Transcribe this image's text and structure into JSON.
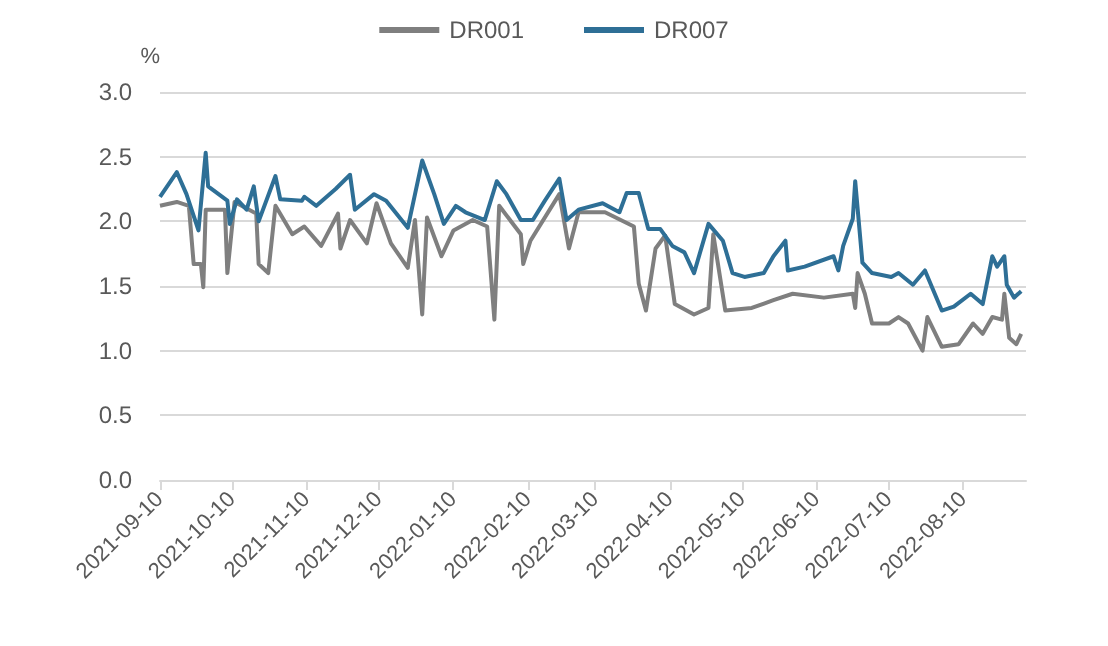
{
  "chart_data": {
    "type": "line",
    "ylabel": "%",
    "legend": "top",
    "grid": "y",
    "marker": "none",
    "xlim": [
      "2021-09-10",
      "2022-09-05"
    ],
    "xticks": [
      "2021-09-10",
      "2021-10-10",
      "2021-11-10",
      "2021-12-10",
      "2022-01-10",
      "2022-02-10",
      "2022-03-10",
      "2022-04-10",
      "2022-05-10",
      "2022-06-10",
      "2022-07-10",
      "2022-08-10"
    ],
    "ylim": [
      0,
      3
    ],
    "yticks": [
      {
        "value": 0,
        "label": "0.0"
      },
      {
        "value": 0.5,
        "label": "0.5"
      },
      {
        "value": 1,
        "label": "1.0"
      },
      {
        "value": 1.5,
        "label": "1.5"
      },
      {
        "value": 2,
        "label": "2.0"
      },
      {
        "value": 2.5,
        "label": "2.5"
      },
      {
        "value": 3,
        "label": "3.0"
      }
    ],
    "series": [
      {
        "name": "DR001",
        "color": "#7f7f7f",
        "x": [
          "2021-09-10",
          "2021-09-17",
          "2021-09-22",
          "2021-09-24",
          "2021-09-27",
          "2021-09-28",
          "2021-09-29",
          "2021-10-07",
          "2021-10-08",
          "2021-10-11",
          "2021-10-20",
          "2021-10-21",
          "2021-10-25",
          "2021-10-28",
          "2021-11-04",
          "2021-11-09",
          "2021-11-16",
          "2021-11-23",
          "2021-11-24",
          "2021-11-28",
          "2021-12-05",
          "2021-12-09",
          "2021-12-15",
          "2021-12-22",
          "2021-12-25",
          "2021-12-28",
          "2021-12-30",
          "2022-01-05",
          "2022-01-10",
          "2022-01-18",
          "2022-01-24",
          "2022-01-27",
          "2022-01-29",
          "2022-02-07",
          "2022-02-08",
          "2022-02-11",
          "2022-02-23",
          "2022-02-27",
          "2022-03-03",
          "2022-03-14",
          "2022-03-26",
          "2022-03-28",
          "2022-03-31",
          "2022-04-04",
          "2022-04-08",
          "2022-04-12",
          "2022-04-20",
          "2022-04-26",
          "2022-04-28",
          "2022-05-03",
          "2022-05-14",
          "2022-05-23",
          "2022-05-31",
          "2022-06-13",
          "2022-06-25",
          "2022-06-26",
          "2022-06-27",
          "2022-06-30",
          "2022-07-03",
          "2022-07-10",
          "2022-07-14",
          "2022-07-18",
          "2022-07-24",
          "2022-07-26",
          "2022-08-01",
          "2022-08-08",
          "2022-08-14",
          "2022-08-18",
          "2022-08-22",
          "2022-08-26",
          "2022-08-27",
          "2022-08-29",
          "2022-09-01",
          "2022-09-03"
        ],
        "values": [
          2.12,
          2.15,
          2.12,
          1.67,
          1.67,
          1.49,
          2.09,
          2.09,
          1.6,
          2.15,
          2.06,
          1.67,
          1.6,
          2.12,
          1.9,
          1.96,
          1.81,
          2.06,
          1.79,
          2.01,
          1.83,
          2.14,
          1.83,
          1.64,
          2.01,
          1.28,
          2.03,
          1.73,
          1.93,
          2.01,
          1.96,
          1.24,
          2.12,
          1.9,
          1.67,
          1.85,
          2.21,
          1.79,
          2.07,
          2.07,
          1.96,
          1.52,
          1.31,
          1.79,
          1.89,
          1.36,
          1.28,
          1.33,
          1.9,
          1.31,
          1.33,
          1.39,
          1.44,
          1.41,
          1.44,
          1.33,
          1.6,
          1.44,
          1.21,
          1.21,
          1.26,
          1.21,
          1.0,
          1.26,
          1.03,
          1.05,
          1.21,
          1.13,
          1.26,
          1.24,
          1.44,
          1.1,
          1.05,
          1.13
        ]
      },
      {
        "name": "DR007",
        "color": "#2e6f96",
        "x": [
          "2021-09-10",
          "2021-09-17",
          "2021-09-21",
          "2021-09-26",
          "2021-09-29",
          "2021-09-30",
          "2021-10-08",
          "2021-10-09",
          "2021-10-12",
          "2021-10-16",
          "2021-10-19",
          "2021-10-21",
          "2021-10-28",
          "2021-10-30",
          "2021-11-08",
          "2021-11-09",
          "2021-11-14",
          "2021-11-22",
          "2021-11-28",
          "2021-11-30",
          "2021-12-08",
          "2021-12-13",
          "2021-12-22",
          "2021-12-28",
          "2022-01-02",
          "2022-01-06",
          "2022-01-11",
          "2022-01-15",
          "2022-01-23",
          "2022-01-28",
          "2022-02-01",
          "2022-02-07",
          "2022-02-12",
          "2022-02-17",
          "2022-02-23",
          "2022-02-26",
          "2022-03-03",
          "2022-03-13",
          "2022-03-20",
          "2022-03-23",
          "2022-03-28",
          "2022-04-01",
          "2022-04-06",
          "2022-04-11",
          "2022-04-16",
          "2022-04-20",
          "2022-04-26",
          "2022-05-02",
          "2022-05-06",
          "2022-05-11",
          "2022-05-19",
          "2022-05-23",
          "2022-05-28",
          "2022-05-29",
          "2022-06-05",
          "2022-06-17",
          "2022-06-19",
          "2022-06-21",
          "2022-06-25",
          "2022-06-26",
          "2022-06-29",
          "2022-07-03",
          "2022-07-11",
          "2022-07-14",
          "2022-07-20",
          "2022-07-25",
          "2022-08-01",
          "2022-08-06",
          "2022-08-13",
          "2022-08-18",
          "2022-08-22",
          "2022-08-24",
          "2022-08-27",
          "2022-08-28",
          "2022-08-31",
          "2022-09-03"
        ],
        "values": [
          2.19,
          2.38,
          2.21,
          1.93,
          2.53,
          2.27,
          2.16,
          1.98,
          2.17,
          2.09,
          2.27,
          2.0,
          2.35,
          2.17,
          2.16,
          2.19,
          2.12,
          2.25,
          2.36,
          2.09,
          2.21,
          2.16,
          1.95,
          2.47,
          2.21,
          1.98,
          2.12,
          2.07,
          2.01,
          2.31,
          2.21,
          2.01,
          2.01,
          2.16,
          2.33,
          2.01,
          2.09,
          2.14,
          2.07,
          2.22,
          2.22,
          1.94,
          1.94,
          1.81,
          1.76,
          1.6,
          1.98,
          1.85,
          1.6,
          1.57,
          1.6,
          1.73,
          1.85,
          1.62,
          1.65,
          1.73,
          1.62,
          1.81,
          2.02,
          2.31,
          1.68,
          1.6,
          1.57,
          1.6,
          1.51,
          1.62,
          1.31,
          1.34,
          1.44,
          1.36,
          1.73,
          1.65,
          1.73,
          1.51,
          1.41,
          1.46
        ]
      }
    ]
  }
}
